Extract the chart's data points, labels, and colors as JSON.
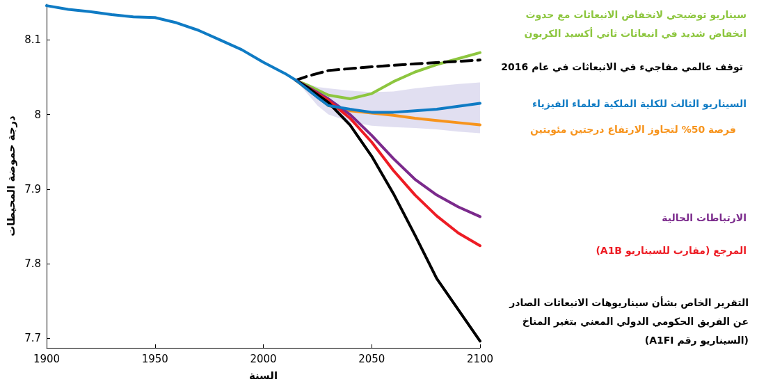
{
  "chart_data": {
    "type": "line",
    "xlabel": "السنة",
    "ylabel": "درجة حموضة المحيطات",
    "xlim": [
      1900,
      2100
    ],
    "xticks": [
      1900,
      1950,
      2000,
      2050,
      2100
    ],
    "ylim": [
      7.687,
      8.148
    ],
    "yticks": [
      7.7,
      7.8,
      7.9,
      8,
      8.1
    ],
    "grid": false,
    "legend": false,
    "marker": "none",
    "line_style": "solid",
    "series": [
      {
        "name": "سيناريو توضيحي لانخفاض الانبعاثات مع حدوث\nانخفاض شديد في انبعاثات ثاني أكسيد الكربون",
        "color": "#8dc63f",
        "x": [
          2015,
          2020,
          2030,
          2040,
          2050,
          2060,
          2070,
          2080,
          2090,
          2100
        ],
        "values": [
          8.046,
          8.04,
          8.026,
          8.021,
          8.028,
          8.044,
          8.057,
          8.067,
          8.075,
          8.083
        ]
      },
      {
        "name": "توقف عالمي مفاجيء في الانبعاثات في عام 2016",
        "color": "#000000",
        "line_style": "dashed",
        "x": [
          2015,
          2020,
          2030,
          2050,
          2070,
          2100
        ],
        "values": [
          8.046,
          8.051,
          8.059,
          8.064,
          8.068,
          8.073
        ]
      },
      {
        "name": "السيناريو الثالث للكلية الملكية لعلماء الفيزياء",
        "color": "#0f7bc4",
        "x": [
          1900,
          1910,
          1920,
          1930,
          1940,
          1950,
          1960,
          1970,
          1980,
          1990,
          2000,
          2010,
          2015,
          2025,
          2030,
          2040,
          2050,
          2060,
          2070,
          2080,
          2090,
          2100
        ],
        "values": [
          8.146,
          8.141,
          8.138,
          8.134,
          8.131,
          8.13,
          8.123,
          8.113,
          8.1,
          8.087,
          8.07,
          8.055,
          8.046,
          8.023,
          8.012,
          8.007,
          8.003,
          8.003,
          8.005,
          8.007,
          8.011,
          8.015
        ],
        "lower": [
          null,
          null,
          null,
          null,
          null,
          null,
          null,
          null,
          null,
          null,
          null,
          null,
          8.046,
          8.012,
          8.0,
          7.99,
          7.985,
          7.983,
          7.982,
          7.98,
          7.977,
          7.975
        ],
        "upper": [
          null,
          null,
          null,
          null,
          null,
          null,
          null,
          null,
          null,
          null,
          null,
          null,
          8.046,
          8.037,
          8.035,
          8.032,
          8.03,
          8.031,
          8.035,
          8.038,
          8.041,
          8.043
        ]
      },
      {
        "name": "فرصة 50% لتجاوز الارتفاع درجتين مئويتين",
        "color": "#f7941d",
        "x": [
          2015,
          2030,
          2040,
          2050,
          2060,
          2070,
          2080,
          2090,
          2100
        ],
        "values": [
          8.046,
          8.012,
          8.005,
          8.002,
          7.999,
          7.995,
          7.992,
          7.989,
          7.986
        ]
      },
      {
        "name": "الارتباطات الحالية",
        "color": "#7b2a8c",
        "x": [
          2015,
          2030,
          2040,
          2050,
          2060,
          2070,
          2080,
          2090,
          2100
        ],
        "values": [
          8.046,
          8.021,
          8.0,
          7.972,
          7.941,
          7.913,
          7.892,
          7.876,
          7.863
        ]
      },
      {
        "name": "المرجع (مقارب للسيناريو A1B)",
        "color": "#ed1c24",
        "x": [
          2015,
          2030,
          2040,
          2050,
          2060,
          2070,
          2080,
          2090,
          2100
        ],
        "values": [
          8.046,
          8.019,
          7.995,
          7.963,
          7.925,
          7.892,
          7.864,
          7.841,
          7.824
        ]
      },
      {
        "name": "التقرير الخاص بشأن سيناريوهات الانبعاثات الصادر\nعن الفريق الحكومي الدولي المعني بتغير المناخ\n(السيناريو رقم A1FI)",
        "color": "#000000",
        "x": [
          2015,
          2020,
          2030,
          2040,
          2050,
          2060,
          2070,
          2080,
          2090,
          2100
        ],
        "values": [
          8.046,
          8.037,
          8.016,
          7.986,
          7.944,
          7.894,
          7.838,
          7.78,
          7.738,
          7.696
        ]
      }
    ]
  }
}
